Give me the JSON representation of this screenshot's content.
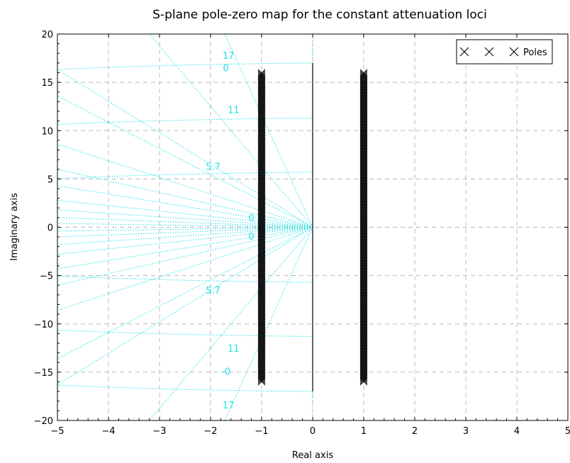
{
  "chart_data": {
    "type": "scatter",
    "title": "S-plane pole-zero map for the constant attenuation loci",
    "xlabel": "Real axis",
    "ylabel": "Imaginary axis",
    "xlim": [
      -5,
      5
    ],
    "ylim": [
      -20,
      20
    ],
    "x_ticks": [
      "−5",
      "−4",
      "−3",
      "−2",
      "−1",
      "0",
      "1",
      "2",
      "3",
      "4",
      "5"
    ],
    "y_ticks": [
      "20",
      "15",
      "10",
      "5",
      "0",
      "−5",
      "−10",
      "−15",
      "−20"
    ],
    "grid": true,
    "legend": {
      "placement": "top-right",
      "entries": [
        {
          "label": "Poles",
          "marker": "x"
        }
      ]
    },
    "series": [
      {
        "name": "Poles",
        "marker": "x",
        "color": "#000000",
        "columns": [
          {
            "x": -1,
            "y_range": [
              -16,
              16
            ]
          },
          {
            "x": 1,
            "y_range": [
              -16,
              16
            ]
          }
        ]
      }
    ],
    "grid_overlay": {
      "color": "#22e0e6",
      "frequency_loci": [
        {
          "label": "17",
          "y": 17
        },
        {
          "label": "11",
          "y": 11.3
        },
        {
          "label": "5.7",
          "y": 5.7
        },
        {
          "label": "0",
          "y": 0
        },
        {
          "label": "5.7",
          "y": -5.7
        },
        {
          "label": "11",
          "y": -11.3
        },
        {
          "label": "17",
          "y": -17
        }
      ],
      "damping_label_top": "0",
      "damping_label_bottom": "-0",
      "center_labels": [
        "0",
        "0"
      ]
    },
    "axis_lines": {
      "vertical_x": 0,
      "color": "#000000"
    }
  }
}
